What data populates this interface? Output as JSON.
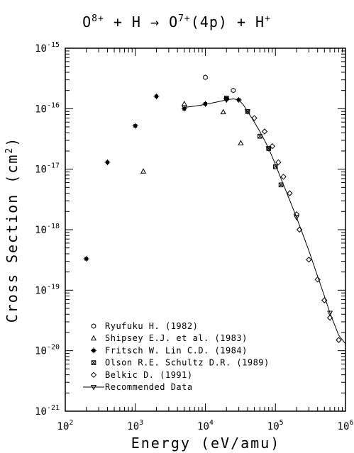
{
  "chart_data": {
    "type": "scatter",
    "title": "O8+ + H → O7+(4p) + H+",
    "title_parts": {
      "t1": "O",
      "t1_sup": "8+",
      "t2": " + H → O",
      "t2_sup": "7+",
      "t3": "(4p) + H",
      "t3_sup": "+"
    },
    "xlabel": "Energy (eV/amu)",
    "ylabel": "Cross Section (cm²)",
    "ylabel_parts": {
      "main": "Cross Section (cm",
      "sup": "2",
      "end": ")"
    },
    "x_scale": "log",
    "y_scale": "log",
    "xlim": [
      100,
      1000000
    ],
    "ylim": [
      1e-21,
      1e-15
    ],
    "x_ticks": [
      {
        "base": "10",
        "exp": "2"
      },
      {
        "base": "10",
        "exp": "3"
      },
      {
        "base": "10",
        "exp": "4"
      },
      {
        "base": "10",
        "exp": "5"
      },
      {
        "base": "10",
        "exp": "6"
      }
    ],
    "y_ticks": [
      {
        "base": "10",
        "exp": "-21"
      },
      {
        "base": "10",
        "exp": "-20"
      },
      {
        "base": "10",
        "exp": "-19"
      },
      {
        "base": "10",
        "exp": "-18"
      },
      {
        "base": "10",
        "exp": "-17"
      },
      {
        "base": "10",
        "exp": "-16"
      },
      {
        "base": "10",
        "exp": "-15"
      }
    ],
    "grid": false,
    "legend_position": "bottom-left",
    "series": [
      {
        "name": "Ryufuku H. (1982)",
        "marker": "hexagon",
        "points": [
          [
            10000,
            3.3e-16
          ],
          [
            25000,
            2e-16
          ]
        ]
      },
      {
        "name": "Shipsey E.J. et al. (1983)",
        "marker": "triangle",
        "points": [
          [
            1300,
            9.2e-18
          ],
          [
            5000,
            1.2e-16
          ],
          [
            18000,
            8.8e-17
          ],
          [
            32000,
            2.7e-17
          ]
        ]
      },
      {
        "name": "Fritsch W. Lin C.D. (1984)",
        "marker": "cross",
        "points": [
          [
            200,
            3.3e-19
          ],
          [
            400,
            1.3e-17
          ],
          [
            1000,
            5.2e-17
          ],
          [
            2000,
            1.6e-16
          ],
          [
            5000,
            1e-16
          ],
          [
            10000,
            1.2e-16
          ],
          [
            20000,
            1.45e-16
          ],
          [
            30000,
            1.4e-16
          ]
        ]
      },
      {
        "name": "Olson R.E. Schultz D.R. (1989)",
        "marker": "xbox",
        "points": [
          [
            20000,
            1.5e-16
          ],
          [
            40000,
            9e-17
          ],
          [
            60000,
            3.5e-17
          ],
          [
            80000,
            2.2e-17
          ],
          [
            100000,
            1.1e-17
          ],
          [
            120000,
            5.5e-18
          ]
        ]
      },
      {
        "name": "Belkic D. (1991)",
        "marker": "diamond",
        "points": [
          [
            50000,
            7e-17
          ],
          [
            70000,
            4.2e-17
          ],
          [
            90000,
            2.4e-17
          ],
          [
            110000,
            1.3e-17
          ],
          [
            130000,
            7.5e-18
          ],
          [
            160000,
            4e-18
          ],
          [
            200000,
            1.8e-18
          ],
          [
            220000,
            1e-18
          ],
          [
            300000,
            3.2e-19
          ],
          [
            400000,
            1.5e-19
          ],
          [
            500000,
            6.8e-20
          ],
          [
            600000,
            3.5e-20
          ],
          [
            800000,
            1.5e-20
          ]
        ]
      },
      {
        "name": "Recommended Data",
        "marker": "line-triangle-down",
        "line": true,
        "points": [
          [
            5000,
            1.05e-16
          ],
          [
            7000,
            1.1e-16
          ],
          [
            10000,
            1.18e-16
          ],
          [
            15000,
            1.3e-16
          ],
          [
            20000,
            1.4e-16
          ],
          [
            25000,
            1.45e-16
          ],
          [
            30000,
            1.4e-16
          ],
          [
            35000,
            1.15e-16
          ],
          [
            40000,
            9e-17
          ],
          [
            50000,
            6e-17
          ],
          [
            60000,
            4.2e-17
          ],
          [
            70000,
            3e-17
          ],
          [
            80000,
            2.2e-17
          ],
          [
            100000,
            1.2e-17
          ],
          [
            120000,
            7e-18
          ],
          [
            150000,
            3.7e-18
          ],
          [
            200000,
            1.6e-18
          ],
          [
            300000,
            4.5e-19
          ],
          [
            400000,
            1.7e-19
          ],
          [
            500000,
            8e-20
          ],
          [
            600000,
            4.2e-20
          ],
          [
            800000,
            1.8e-20
          ],
          [
            1000000,
            1.3e-20
          ]
        ]
      }
    ]
  }
}
